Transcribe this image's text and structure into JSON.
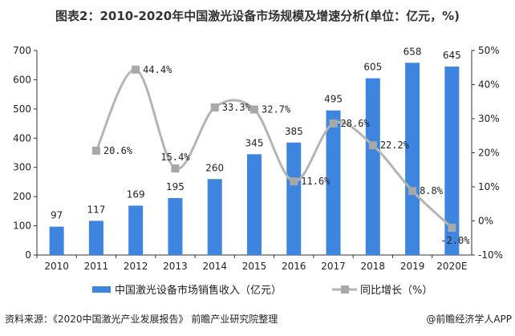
{
  "chart_data": {
    "type": "bar",
    "title": "图表2：2010-2020年中国激光设备市场规模及增速分析(单位：亿元，%)",
    "categories": [
      "2010",
      "2011",
      "2012",
      "2013",
      "2014",
      "2015",
      "2016",
      "2017",
      "2018",
      "2019",
      "2020E"
    ],
    "series": [
      {
        "name": "中国激光设备市场销售收入（亿元）",
        "type": "bar",
        "axis": "left",
        "color": "#3d85de",
        "values": [
          97,
          117,
          169,
          195,
          260,
          345,
          385,
          495,
          605,
          658,
          645
        ]
      },
      {
        "name": "同比增长（%）",
        "type": "line",
        "axis": "right",
        "color": "#b4b4b4",
        "values": [
          null,
          20.6,
          44.4,
          15.4,
          33.3,
          32.7,
          11.6,
          28.6,
          22.2,
          8.8,
          -2.0
        ]
      }
    ],
    "y_left": {
      "min": 0,
      "max": 700,
      "step": 100,
      "ticks": [
        "0",
        "100",
        "200",
        "300",
        "400",
        "500",
        "600",
        "700"
      ]
    },
    "y_right": {
      "min": -10,
      "max": 50,
      "step": 10,
      "ticks": [
        "-10%",
        "0%",
        "10%",
        "20%",
        "30%",
        "40%",
        "50%"
      ]
    },
    "line_labels": [
      null,
      "20.6%",
      "44.4%",
      "15.4%",
      "33.3%",
      "32.7%",
      "11.6%",
      "28.6%",
      "22.2%",
      "8.8%",
      "-2.0%"
    ],
    "legend_position": "bottom",
    "grid": false
  },
  "footer": {
    "source": "资料来源：《2020中国激光产业发展报告》 前瞻产业研究院整理",
    "credit": "@前瞻经济学人APP"
  }
}
